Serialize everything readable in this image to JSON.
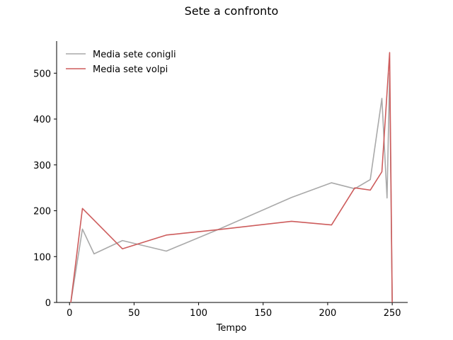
{
  "chart_data": {
    "type": "line",
    "title": "Sete a confronto",
    "xlabel": "Tempo",
    "ylabel": "",
    "xlim": [
      -10,
      262
    ],
    "ylim": [
      0,
      570
    ],
    "xticks": [
      0,
      50,
      100,
      150,
      200,
      250
    ],
    "yticks": [
      0,
      100,
      200,
      300,
      400,
      500
    ],
    "grid": false,
    "legend_position": "top-left",
    "series": [
      {
        "name": "Media sete conigli",
        "color": "#a9a9a9",
        "x": [
          1,
          10,
          19,
          41,
          75,
          116,
          172,
          203,
          221,
          233,
          242,
          246,
          248,
          250
        ],
        "y": [
          0,
          160,
          106,
          135,
          112,
          160,
          229,
          261,
          248,
          268,
          445,
          228,
          500,
          0
        ]
      },
      {
        "name": "Media sete volpi",
        "color": "#cd5c5c",
        "x": [
          1,
          10,
          41,
          75,
          116,
          172,
          203,
          221,
          233,
          242,
          248,
          250
        ],
        "y": [
          0,
          205,
          117,
          147,
          159,
          177,
          169,
          250,
          245,
          285,
          545,
          0
        ]
      }
    ]
  }
}
